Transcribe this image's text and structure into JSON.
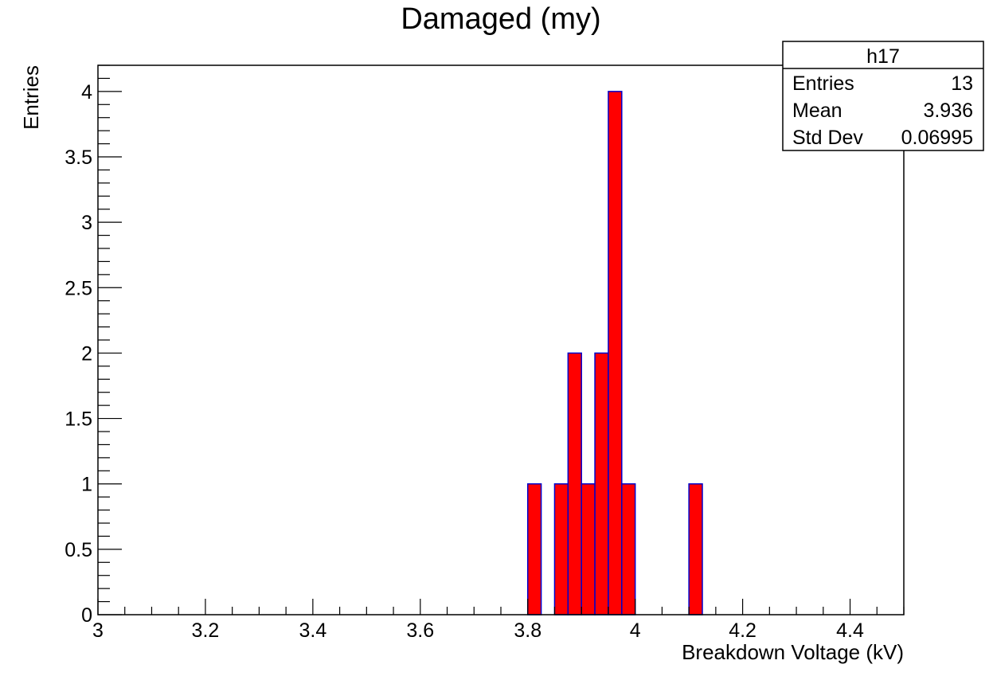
{
  "chart_data": {
    "type": "bar",
    "title": "Damaged (my)",
    "xlabel": "Breakdown Voltage (kV)",
    "ylabel": "Entries",
    "xlim": [
      3,
      4.5
    ],
    "ylim": [
      0,
      4.2
    ],
    "bin_width": 0.025,
    "bins": [
      {
        "x_low": 3.8,
        "x_high": 3.825,
        "value": 1
      },
      {
        "x_low": 3.85,
        "x_high": 3.875,
        "value": 1
      },
      {
        "x_low": 3.875,
        "x_high": 3.9,
        "value": 2
      },
      {
        "x_low": 3.9,
        "x_high": 3.925,
        "value": 1
      },
      {
        "x_low": 3.925,
        "x_high": 3.95,
        "value": 2
      },
      {
        "x_low": 3.95,
        "x_high": 3.975,
        "value": 4
      },
      {
        "x_low": 3.975,
        "x_high": 4.0,
        "value": 1
      },
      {
        "x_low": 4.1,
        "x_high": 4.125,
        "value": 1
      }
    ],
    "x_ticks": [
      "3",
      "3.2",
      "3.4",
      "3.6",
      "3.8",
      "4",
      "4.2",
      "4.4"
    ],
    "y_ticks": [
      "0",
      "0.5",
      "1",
      "1.5",
      "2",
      "2.5",
      "3",
      "3.5",
      "4"
    ],
    "fill_color": "#ff0000",
    "line_color": "#0000cc",
    "grid": false,
    "legend": "top-right",
    "stats": {
      "name": "h17",
      "rows": [
        {
          "label": "Entries",
          "value": "13"
        },
        {
          "label": "Mean",
          "value": "3.936"
        },
        {
          "label": "Std Dev",
          "value": "0.06995"
        }
      ]
    }
  }
}
